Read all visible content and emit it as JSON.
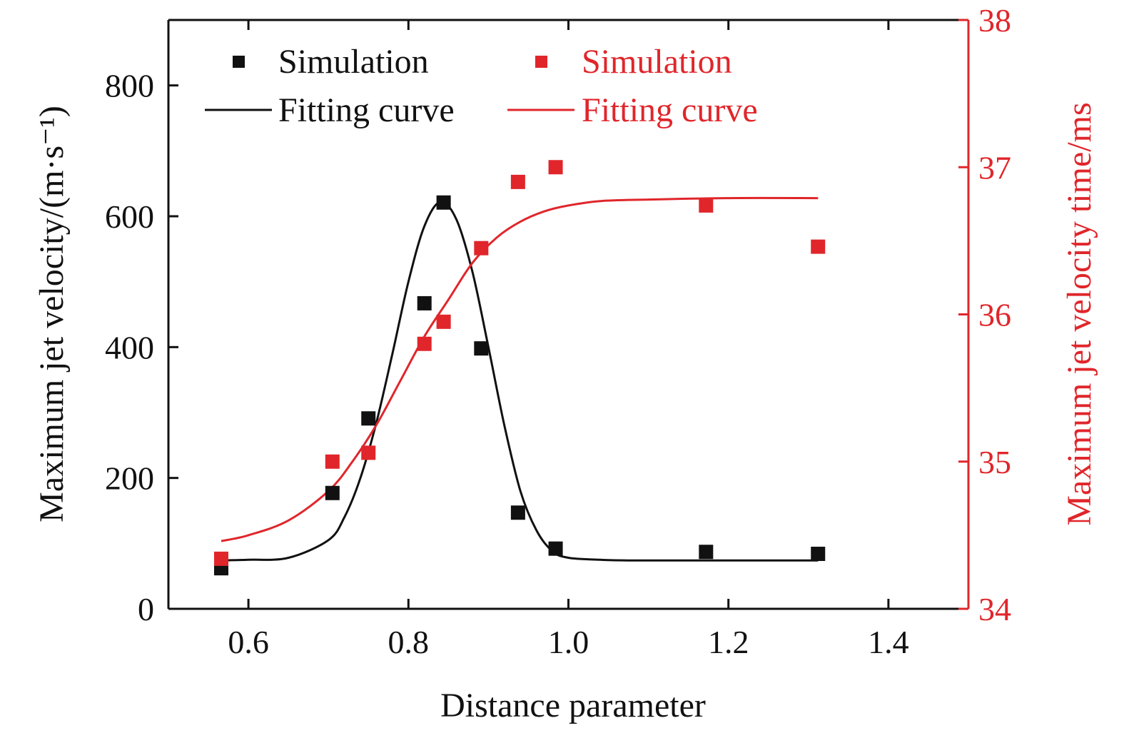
{
  "chart_data": {
    "type": "scatter",
    "title": "",
    "xlabel": "Distance parameter",
    "ylabel_left": "Maximum jet velocity/(m·s⁻¹)",
    "ylabel_right": "Maximum jet velocity time/ms",
    "xlim": [
      0.5,
      1.5
    ],
    "ylim_left": [
      0,
      900
    ],
    "ylim_right": [
      34,
      38
    ],
    "x_ticks": [
      0.6,
      0.8,
      1.0,
      1.2,
      1.4
    ],
    "x_tick_labels": [
      "0.6",
      "0.8",
      "1.0",
      "1.2",
      "1.4"
    ],
    "y_left_ticks": [
      0,
      200,
      400,
      600,
      800
    ],
    "y_left_tick_labels": [
      "0",
      "200",
      "400",
      "600",
      "800"
    ],
    "y_right_ticks": [
      34,
      35,
      36,
      37,
      38
    ],
    "y_right_tick_labels": [
      "34",
      "35",
      "36",
      "37",
      "38"
    ],
    "grid": false,
    "legend_position": "top-left",
    "colors": {
      "left": "#111111",
      "right": "#e0262b"
    },
    "series": [
      {
        "name": "Simulation",
        "axis": "left",
        "kind": "points",
        "x": [
          0.566,
          0.705,
          0.75,
          0.82,
          0.844,
          0.891,
          0.937,
          0.984,
          1.172,
          1.312
        ],
        "y": [
          62,
          177,
          291,
          467,
          621,
          398,
          147,
          92,
          87,
          84
        ]
      },
      {
        "name": "Fitting curve",
        "axis": "left",
        "kind": "curve",
        "x": [
          0.566,
          0.6,
          0.65,
          0.7,
          0.72,
          0.74,
          0.76,
          0.78,
          0.8,
          0.82,
          0.84,
          0.86,
          0.88,
          0.9,
          0.92,
          0.94,
          0.96,
          0.98,
          1.0,
          1.04,
          1.08,
          1.2,
          1.312
        ],
        "y": [
          74,
          75,
          78,
          105,
          140,
          200,
          285,
          390,
          500,
          585,
          622,
          595,
          515,
          400,
          280,
          180,
          120,
          88,
          78,
          75,
          74,
          74,
          74
        ]
      },
      {
        "name": "Simulation",
        "axis": "right",
        "kind": "points",
        "x": [
          0.566,
          0.705,
          0.75,
          0.82,
          0.844,
          0.891,
          0.937,
          0.984,
          1.172,
          1.312
        ],
        "y": [
          34.34,
          35.0,
          35.06,
          35.8,
          35.95,
          36.45,
          36.9,
          37.0,
          36.74,
          36.46
        ]
      },
      {
        "name": "Fitting curve",
        "axis": "right",
        "kind": "curve",
        "x": [
          0.566,
          0.6,
          0.65,
          0.7,
          0.73,
          0.76,
          0.79,
          0.82,
          0.85,
          0.88,
          0.91,
          0.94,
          0.97,
          1.0,
          1.04,
          1.1,
          1.2,
          1.312
        ],
        "y": [
          34.46,
          34.5,
          34.6,
          34.8,
          35.0,
          35.25,
          35.55,
          35.85,
          36.1,
          36.35,
          36.52,
          36.63,
          36.7,
          36.74,
          36.77,
          36.78,
          36.79,
          36.79
        ]
      }
    ]
  }
}
